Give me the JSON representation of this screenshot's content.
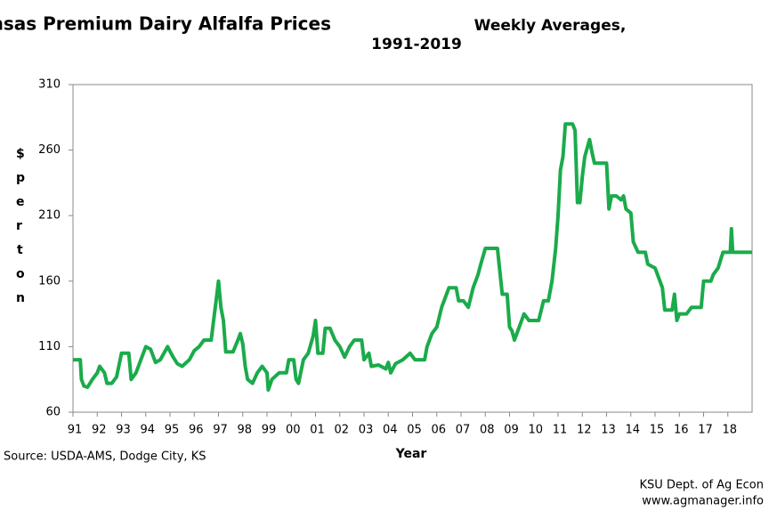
{
  "chart_data": {
    "type": "line",
    "title": "SW Kansas Premium Dairy Alfalfa Prices",
    "subtitle": "Weekly Averages,",
    "subtitle2": "1991-2019",
    "x_label": "Year",
    "y_label": "$ per ton",
    "source": "Source: USDA-AMS, Dodge City, KS",
    "credit1": "KSU Dept. of Ag Econ",
    "credit2": "www.agmanager.info",
    "xlim": [
      1991,
      2019
    ],
    "xticks": [
      {
        "value": 1991,
        "label": "91"
      },
      {
        "value": 1992,
        "label": "92"
      },
      {
        "value": 1993,
        "label": "93"
      },
      {
        "value": 1994,
        "label": "94"
      },
      {
        "value": 1995,
        "label": "95"
      },
      {
        "value": 1996,
        "label": "96"
      },
      {
        "value": 1997,
        "label": "97"
      },
      {
        "value": 1998,
        "label": "98"
      },
      {
        "value": 1999,
        "label": "99"
      },
      {
        "value": 2000,
        "label": "00"
      },
      {
        "value": 2001,
        "label": "01"
      },
      {
        "value": 2002,
        "label": "02"
      },
      {
        "value": 2003,
        "label": "03"
      },
      {
        "value": 2004,
        "label": "04"
      },
      {
        "value": 2005,
        "label": "05"
      },
      {
        "value": 2006,
        "label": "06"
      },
      {
        "value": 2007,
        "label": "07"
      },
      {
        "value": 2008,
        "label": "08"
      },
      {
        "value": 2009,
        "label": "09"
      },
      {
        "value": 2010,
        "label": "10"
      },
      {
        "value": 2011,
        "label": "11"
      },
      {
        "value": 2012,
        "label": "12"
      },
      {
        "value": 2013,
        "label": "13"
      },
      {
        "value": 2014,
        "label": "14"
      },
      {
        "value": 2015,
        "label": "15"
      },
      {
        "value": 2016,
        "label": "16"
      },
      {
        "value": 2017,
        "label": "17"
      },
      {
        "value": 2018,
        "label": "18"
      }
    ],
    "ylim": [
      60,
      310
    ],
    "yticks": [
      60,
      110,
      160,
      210,
      260,
      310
    ],
    "grid": false,
    "series": [
      {
        "name": "Premium Dairy Alfalfa",
        "color": "#1aab4b",
        "x": [
          1991.0,
          1991.3,
          1991.35,
          1991.45,
          1991.6,
          1991.8,
          1992.0,
          1992.1,
          1992.3,
          1992.4,
          1992.6,
          1992.8,
          1993.0,
          1993.3,
          1993.4,
          1993.6,
          1993.8,
          1994.0,
          1994.2,
          1994.4,
          1994.6,
          1994.9,
          1995.1,
          1995.3,
          1995.5,
          1995.8,
          1996.0,
          1996.2,
          1996.4,
          1996.7,
          1996.8,
          1996.9,
          1997.0,
          1997.1,
          1997.2,
          1997.3,
          1997.6,
          1997.8,
          1997.9,
          1998.0,
          1998.1,
          1998.2,
          1998.4,
          1998.6,
          1998.8,
          1999.0,
          1999.05,
          1999.2,
          1999.5,
          1999.8,
          1999.9,
          2000.1,
          2000.2,
          2000.3,
          2000.5,
          2000.7,
          2000.9,
          2001.0,
          2001.1,
          2001.3,
          2001.4,
          2001.6,
          2001.8,
          2002.0,
          2002.2,
          2002.4,
          2002.6,
          2002.9,
          2003.0,
          2003.2,
          2003.3,
          2003.6,
          2003.9,
          2004.0,
          2004.1,
          2004.3,
          2004.6,
          2004.9,
          2005.1,
          2005.5,
          2005.6,
          2005.8,
          2006.0,
          2006.2,
          2006.4,
          2006.5,
          2006.8,
          2006.9,
          2007.1,
          2007.3,
          2007.5,
          2007.7,
          2007.8,
          2008.0,
          2008.5,
          2008.7,
          2008.9,
          2009.0,
          2009.1,
          2009.2,
          2009.4,
          2009.6,
          2009.8,
          2010.2,
          2010.4,
          2010.6,
          2010.75,
          2010.9,
          2011.0,
          2011.1,
          2011.2,
          2011.3,
          2011.6,
          2011.7,
          2011.8,
          2011.9,
          2012.0,
          2012.1,
          2012.3,
          2012.4,
          2012.5,
          2012.9,
          2013.0,
          2013.1,
          2013.2,
          2013.4,
          2013.6,
          2013.7,
          2013.8,
          2014.0,
          2014.1,
          2014.3,
          2014.6,
          2014.7,
          2015.0,
          2015.2,
          2015.3,
          2015.4,
          2015.7,
          2015.8,
          2015.9,
          2016.0,
          2016.3,
          2016.5,
          2016.9,
          2017.0,
          2017.3,
          2017.4,
          2017.6,
          2017.8,
          2018.1,
          2018.15,
          2018.2,
          2019.0
        ],
        "values": [
          100,
          100,
          85,
          80,
          79,
          85,
          90,
          95,
          90,
          82,
          82,
          87,
          105,
          105,
          85,
          90,
          100,
          110,
          108,
          98,
          100,
          110,
          103,
          97,
          95,
          100,
          107,
          110,
          115,
          115,
          130,
          145,
          160,
          140,
          130,
          106,
          106,
          115,
          120,
          112,
          95,
          85,
          82,
          90,
          95,
          90,
          77,
          85,
          90,
          90,
          100,
          100,
          85,
          82,
          100,
          105,
          118,
          130,
          105,
          105,
          124,
          124,
          115,
          110,
          102,
          110,
          115,
          115,
          100,
          105,
          95,
          96,
          93,
          98,
          90,
          97,
          100,
          105,
          100,
          100,
          110,
          120,
          125,
          140,
          150,
          155,
          155,
          145,
          145,
          140,
          155,
          165,
          172,
          185,
          185,
          150,
          150,
          125,
          122,
          115,
          125,
          135,
          130,
          130,
          145,
          145,
          160,
          185,
          210,
          245,
          255,
          280,
          280,
          275,
          220,
          220,
          240,
          255,
          268,
          258,
          250,
          250,
          250,
          215,
          225,
          225,
          222,
          225,
          215,
          212,
          190,
          182,
          182,
          173,
          170,
          160,
          155,
          138,
          138,
          150,
          130,
          135,
          135,
          140,
          140,
          160,
          160,
          165,
          170,
          182,
          182,
          200,
          182,
          182
        ]
      }
    ]
  }
}
